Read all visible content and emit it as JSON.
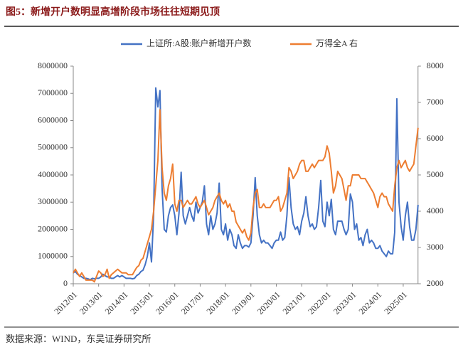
{
  "chart_data": {
    "type": "line",
    "title": "图5：新增开户数明显高增阶段市场往往短期见顶",
    "source": "数据来源：WIND，东吴证券研究所",
    "categories": [
      "2012/01",
      null,
      null,
      null,
      null,
      null,
      null,
      null,
      null,
      null,
      null,
      null,
      "2013/01",
      null,
      null,
      null,
      null,
      null,
      null,
      null,
      null,
      null,
      null,
      null,
      "2014/01",
      null,
      null,
      null,
      null,
      null,
      null,
      null,
      null,
      null,
      null,
      null,
      "2015/01",
      null,
      null,
      null,
      null,
      null,
      null,
      null,
      null,
      null,
      null,
      null,
      "2016/01",
      null,
      null,
      null,
      null,
      null,
      null,
      null,
      null,
      null,
      null,
      null,
      "2017/01",
      null,
      null,
      null,
      null,
      null,
      null,
      null,
      null,
      null,
      null,
      null,
      "2018/01",
      null,
      null,
      null,
      null,
      null,
      null,
      null,
      null,
      null,
      null,
      null,
      "2019/01",
      null,
      null,
      null,
      null,
      null,
      null,
      null,
      null,
      null,
      null,
      null,
      "2020/01",
      null,
      null,
      null,
      null,
      null,
      null,
      null,
      null,
      null,
      null,
      null,
      "2021/01",
      null,
      null,
      null,
      null,
      null,
      null,
      null,
      null,
      null,
      null,
      null,
      "2022/01",
      null,
      null,
      null,
      null,
      null,
      null,
      null,
      null,
      null,
      null,
      null,
      "2023/01",
      null,
      null,
      null,
      null,
      null,
      null,
      null,
      null,
      null,
      null,
      null,
      "2024/01",
      null,
      null,
      null,
      null,
      null,
      null,
      null,
      null,
      null,
      null,
      null,
      "2025/01",
      null,
      null,
      null,
      null,
      null,
      null,
      null
    ],
    "series": [
      {
        "name": "上证所:A股:账户新增开户数",
        "color": "#4472c4",
        "axis": "y",
        "values": [
          400000,
          450000,
          350000,
          300000,
          250000,
          200000,
          200000,
          180000,
          150000,
          200000,
          180000,
          200000,
          200000,
          250000,
          350000,
          300000,
          250000,
          250000,
          200000,
          200000,
          250000,
          300000,
          250000,
          300000,
          250000,
          200000,
          200000,
          200000,
          180000,
          200000,
          300000,
          350000,
          450000,
          500000,
          700000,
          1000000,
          1500000,
          800000,
          2500000,
          7200000,
          6500000,
          7100000,
          3500000,
          2000000,
          1900000,
          2500000,
          2800000,
          2900000,
          2500000,
          1800000,
          2600000,
          4100000,
          2500000,
          2200000,
          2500000,
          2800000,
          2500000,
          2300000,
          3000000,
          2600000,
          2800000,
          3000000,
          3600000,
          2200000,
          1800000,
          2500000,
          2000000,
          2200000,
          2600000,
          3700000,
          2000000,
          1800000,
          2200000,
          1600000,
          2000000,
          1800000,
          1400000,
          1300000,
          1800000,
          1500000,
          1300000,
          1400000,
          1400000,
          1350000,
          1500000,
          2500000,
          3900000,
          2500000,
          1800000,
          1500000,
          1600000,
          1500000,
          1500000,
          1400000,
          1300000,
          1500000,
          1600000,
          1600000,
          1900000,
          1600000,
          1700000,
          2500000,
          3900000,
          2800000,
          2200000,
          2000000,
          2100000,
          1800000,
          2300000,
          2600000,
          3200000,
          2500000,
          2100000,
          2200000,
          2000000,
          2100000,
          2800000,
          3800000,
          2300000,
          2100000,
          3000000,
          2500000,
          3100000,
          2000000,
          1800000,
          2300000,
          2300000,
          2300000,
          2000000,
          1800000,
          2000000,
          3300000,
          3000000,
          2000000,
          2200000,
          1600000,
          1700000,
          1400000,
          1800000,
          2000000,
          1500000,
          1600000,
          1500000,
          1300000,
          1300000,
          1400000,
          1200000,
          1100000,
          1000000,
          1200000,
          1100000,
          1100000,
          1900000,
          6800000,
          3000000,
          2100000,
          1600000,
          2500000,
          3000000,
          2100000,
          1600000,
          1600000,
          2000000,
          2900000
        ]
      },
      {
        "name": "万得全A 右",
        "color": "#ed7d31",
        "axis": "y2",
        "values": [
          2300,
          2400,
          2300,
          2200,
          2300,
          2200,
          2100,
          2100,
          2100,
          2100,
          2050,
          2200,
          2350,
          2300,
          2200,
          2250,
          2400,
          2150,
          2250,
          2300,
          2350,
          2400,
          2350,
          2300,
          2300,
          2300,
          2250,
          2250,
          2250,
          2350,
          2450,
          2500,
          2650,
          2700,
          2900,
          3100,
          3300,
          3500,
          4000,
          4700,
          5400,
          6800,
          5200,
          4500,
          4300,
          4700,
          4900,
          5300,
          4200,
          4000,
          4300,
          4300,
          4100,
          4200,
          4300,
          4200,
          4200,
          4300,
          4400,
          4200,
          4100,
          4200,
          4300,
          4100,
          3900,
          4000,
          4100,
          4300,
          4400,
          4500,
          4300,
          4200,
          4300,
          4100,
          4200,
          4000,
          4000,
          3700,
          3600,
          3500,
          3400,
          3500,
          3300,
          3200,
          3400,
          4100,
          4500,
          4600,
          4100,
          4100,
          4200,
          4100,
          4100,
          4100,
          4200,
          4300,
          4300,
          4400,
          4000,
          4100,
          4300,
          4500,
          5200,
          5100,
          4900,
          5000,
          5100,
          5300,
          5400,
          5400,
          5100,
          5100,
          5200,
          5300,
          5200,
          5300,
          5400,
          5400,
          5400,
          5500,
          5800,
          5600,
          5100,
          4500,
          4700,
          5100,
          5000,
          4900,
          4600,
          4300,
          4700,
          4700,
          5000,
          5000,
          5000,
          5000,
          4900,
          4900,
          4900,
          4800,
          4700,
          4600,
          4500,
          4300,
          4100,
          4400,
          4500,
          4400,
          4400,
          4200,
          4100,
          4000,
          4700,
          5200,
          5400,
          5200,
          5300,
          5400,
          5200,
          5100,
          5200,
          5300,
          5800,
          6300
        ]
      }
    ],
    "ylim": [
      0,
      8000000
    ],
    "yticks": [
      0,
      1000000,
      2000000,
      3000000,
      4000000,
      5000000,
      6000000,
      7000000,
      8000000
    ],
    "y2lim": [
      2000,
      8000
    ],
    "y2ticks": [
      2000,
      3000,
      4000,
      5000,
      6000,
      7000,
      8000
    ],
    "legend": "top"
  }
}
